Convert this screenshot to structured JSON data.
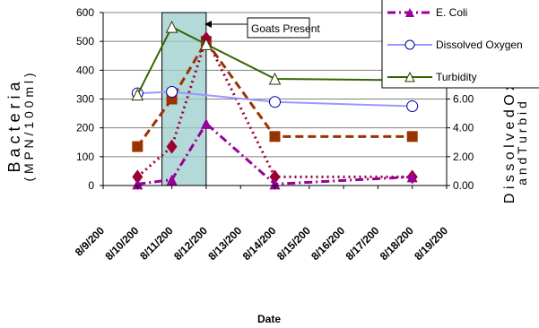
{
  "chart_data": {
    "type": "line",
    "xlabel": "Date",
    "ylabel_left_line1": "B a c t e r i a",
    "ylabel_left_line2": "( M P N / 1 0 0 m l )",
    "ylabel_right_line1": "D i s s o l v e d   O x",
    "ylabel_right_line2": "a n d   T u r b i d",
    "categories": [
      "8/9/200",
      "8/10/200",
      "8/11/200",
      "8/12/200",
      "8/13/200",
      "8/14/200",
      "8/15/200",
      "8/16/200",
      "8/17/200",
      "8/18/200",
      "8/19/200"
    ],
    "ylim_left": [
      0,
      600
    ],
    "yticks_left": [
      "0",
      "100",
      "200",
      "300",
      "400",
      "500",
      "600"
    ],
    "ylim_right": [
      0,
      12
    ],
    "yticks_right": [
      "0.00",
      "2.00",
      "4.00",
      "6.00"
    ],
    "annotation": {
      "label": "Goats Present",
      "x_start": 2,
      "x_end": 3
    },
    "series": [
      {
        "name": "",
        "color": "#993300",
        "axis": "left",
        "style": "dashed",
        "marker": "square",
        "points": [
          [
            1,
            135
          ],
          [
            2,
            300
          ],
          [
            3,
            500
          ],
          [
            5,
            170
          ],
          [
            9,
            170
          ]
        ]
      },
      {
        "name": "",
        "color": "#990033",
        "axis": "left",
        "style": "dotted",
        "marker": "diamond",
        "points": [
          [
            1,
            30
          ],
          [
            2,
            135
          ],
          [
            3,
            510
          ],
          [
            5,
            30
          ],
          [
            9,
            30
          ]
        ]
      },
      {
        "name": "E. Coli",
        "color": "#990099",
        "axis": "left",
        "style": "dashdot",
        "marker": "triangle-filled",
        "points": [
          [
            1,
            5
          ],
          [
            2,
            20
          ],
          [
            3,
            215
          ],
          [
            5,
            5
          ],
          [
            9,
            30
          ]
        ]
      },
      {
        "name": "Dissolved Oxygen",
        "color": "#9999ff",
        "axis": "right",
        "style": "solid",
        "marker": "circle",
        "points": [
          [
            1,
            6.4
          ],
          [
            2,
            6.5
          ],
          [
            5,
            5.8
          ],
          [
            9,
            5.5
          ]
        ]
      },
      {
        "name": "Turbidity",
        "color": "#336600",
        "axis": "right",
        "style": "solid",
        "marker": "triangle",
        "points": [
          [
            1,
            6.3
          ],
          [
            2,
            11.0
          ],
          [
            3,
            9.8
          ],
          [
            5,
            7.4
          ],
          [
            9,
            7.3
          ]
        ]
      }
    ]
  }
}
